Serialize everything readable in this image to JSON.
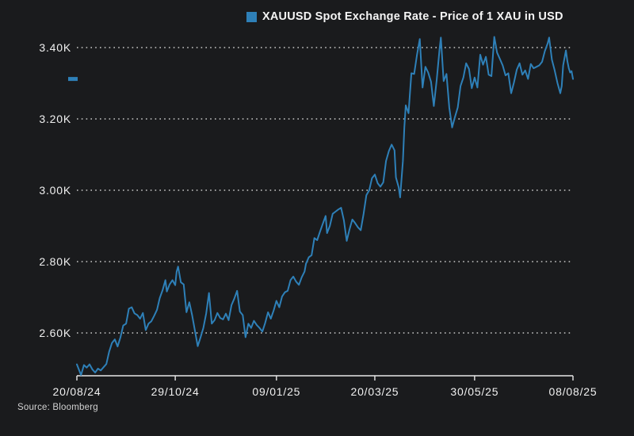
{
  "legend": {
    "label": "XAUUSD Spot Exchange Rate - Price of 1 XAU in USD"
  },
  "source": "Source: Bloomberg",
  "colors": {
    "background": "#1a1b1d",
    "line": "#2e80b8",
    "swatch": "#2e80b8",
    "text": "#f2f2f2",
    "grid": "#c9c9c9",
    "axis": "#e8e8e8"
  },
  "chart_data": {
    "type": "line",
    "title": "XAUUSD Spot Exchange Rate - Price of 1 XAU in USD",
    "legend_position": "top",
    "grid": "dotted-horizontal",
    "y_axis": {
      "tick_labels": [
        "3.40K",
        "3.20K",
        "3.00K",
        "2.80K",
        "2.60K"
      ],
      "tick_values": [
        3400,
        3200,
        3000,
        2800,
        2600
      ],
      "ylim": [
        2480,
        3445
      ],
      "unit": "USD"
    },
    "x_axis": {
      "tick_labels": [
        "20/08/24",
        "29/10/24",
        "09/01/25",
        "20/03/25",
        "30/05/25",
        "08/08/25"
      ],
      "tick_days": [
        0,
        70,
        142,
        212,
        283,
        353
      ],
      "day_span": 353
    },
    "last_price_marker": {
      "value": 3312
    },
    "series": [
      {
        "name": "XAUUSD",
        "points": [
          [
            0,
            2512
          ],
          [
            2,
            2492
          ],
          [
            3,
            2482
          ],
          [
            5,
            2510
          ],
          [
            7,
            2503
          ],
          [
            9,
            2512
          ],
          [
            11,
            2498
          ],
          [
            13,
            2489
          ],
          [
            15,
            2500
          ],
          [
            17,
            2495
          ],
          [
            19,
            2504
          ],
          [
            21,
            2513
          ],
          [
            23,
            2548
          ],
          [
            25,
            2572
          ],
          [
            27,
            2582
          ],
          [
            29,
            2562
          ],
          [
            31,
            2588
          ],
          [
            33,
            2621
          ],
          [
            35,
            2626
          ],
          [
            37,
            2668
          ],
          [
            39,
            2672
          ],
          [
            41,
            2655
          ],
          [
            43,
            2650
          ],
          [
            45,
            2640
          ],
          [
            47,
            2656
          ],
          [
            49,
            2608
          ],
          [
            51,
            2626
          ],
          [
            53,
            2633
          ],
          [
            55,
            2648
          ],
          [
            57,
            2665
          ],
          [
            59,
            2698
          ],
          [
            61,
            2720
          ],
          [
            63,
            2748
          ],
          [
            64,
            2716
          ],
          [
            66,
            2736
          ],
          [
            68,
            2748
          ],
          [
            70,
            2734
          ],
          [
            71,
            2772
          ],
          [
            72,
            2786
          ],
          [
            74,
            2742
          ],
          [
            76,
            2736
          ],
          [
            78,
            2658
          ],
          [
            80,
            2686
          ],
          [
            82,
            2650
          ],
          [
            84,
            2606
          ],
          [
            86,
            2563
          ],
          [
            88,
            2588
          ],
          [
            90,
            2614
          ],
          [
            92,
            2655
          ],
          [
            94,
            2712
          ],
          [
            96,
            2626
          ],
          [
            98,
            2636
          ],
          [
            100,
            2656
          ],
          [
            102,
            2642
          ],
          [
            104,
            2638
          ],
          [
            106,
            2654
          ],
          [
            108,
            2636
          ],
          [
            110,
            2678
          ],
          [
            112,
            2696
          ],
          [
            114,
            2718
          ],
          [
            116,
            2660
          ],
          [
            118,
            2650
          ],
          [
            120,
            2588
          ],
          [
            122,
            2626
          ],
          [
            124,
            2614
          ],
          [
            126,
            2634
          ],
          [
            128,
            2622
          ],
          [
            130,
            2614
          ],
          [
            132,
            2604
          ],
          [
            134,
            2628
          ],
          [
            136,
            2658
          ],
          [
            138,
            2640
          ],
          [
            140,
            2663
          ],
          [
            142,
            2690
          ],
          [
            144,
            2672
          ],
          [
            146,
            2702
          ],
          [
            148,
            2714
          ],
          [
            150,
            2718
          ],
          [
            152,
            2748
          ],
          [
            154,
            2758
          ],
          [
            156,
            2744
          ],
          [
            158,
            2735
          ],
          [
            160,
            2756
          ],
          [
            162,
            2772
          ],
          [
            163,
            2794
          ],
          [
            165,
            2812
          ],
          [
            167,
            2818
          ],
          [
            169,
            2866
          ],
          [
            171,
            2860
          ],
          [
            173,
            2884
          ],
          [
            175,
            2906
          ],
          [
            177,
            2928
          ],
          [
            178,
            2880
          ],
          [
            180,
            2900
          ],
          [
            182,
            2934
          ],
          [
            184,
            2940
          ],
          [
            186,
            2946
          ],
          [
            188,
            2951
          ],
          [
            190,
            2916
          ],
          [
            192,
            2858
          ],
          [
            194,
            2890
          ],
          [
            196,
            2918
          ],
          [
            198,
            2908
          ],
          [
            200,
            2896
          ],
          [
            202,
            2888
          ],
          [
            204,
            2934
          ],
          [
            206,
            2986
          ],
          [
            208,
            3000
          ],
          [
            210,
            3034
          ],
          [
            212,
            3044
          ],
          [
            214,
            3020
          ],
          [
            216,
            3010
          ],
          [
            218,
            3022
          ],
          [
            220,
            3082
          ],
          [
            222,
            3110
          ],
          [
            224,
            3128
          ],
          [
            226,
            3112
          ],
          [
            227,
            3036
          ],
          [
            229,
            3008
          ],
          [
            230,
            2980
          ],
          [
            232,
            3082
          ],
          [
            233,
            3176
          ],
          [
            234,
            3238
          ],
          [
            236,
            3216
          ],
          [
            238,
            3328
          ],
          [
            240,
            3326
          ],
          [
            242,
            3380
          ],
          [
            244,
            3424
          ],
          [
            246,
            3288
          ],
          [
            248,
            3346
          ],
          [
            250,
            3330
          ],
          [
            252,
            3304
          ],
          [
            254,
            3236
          ],
          [
            256,
            3308
          ],
          [
            258,
            3392
          ],
          [
            259,
            3428
          ],
          [
            261,
            3306
          ],
          [
            263,
            3326
          ],
          [
            265,
            3232
          ],
          [
            267,
            3176
          ],
          [
            269,
            3205
          ],
          [
            271,
            3232
          ],
          [
            273,
            3292
          ],
          [
            275,
            3316
          ],
          [
            277,
            3356
          ],
          [
            279,
            3340
          ],
          [
            281,
            3286
          ],
          [
            283,
            3316
          ],
          [
            285,
            3288
          ],
          [
            287,
            3380
          ],
          [
            289,
            3352
          ],
          [
            291,
            3374
          ],
          [
            293,
            3324
          ],
          [
            295,
            3320
          ],
          [
            297,
            3430
          ],
          [
            299,
            3386
          ],
          [
            301,
            3368
          ],
          [
            303,
            3350
          ],
          [
            305,
            3322
          ],
          [
            307,
            3328
          ],
          [
            309,
            3272
          ],
          [
            311,
            3302
          ],
          [
            313,
            3338
          ],
          [
            315,
            3356
          ],
          [
            317,
            3324
          ],
          [
            319,
            3336
          ],
          [
            321,
            3312
          ],
          [
            323,
            3354
          ],
          [
            325,
            3342
          ],
          [
            327,
            3346
          ],
          [
            329,
            3350
          ],
          [
            331,
            3360
          ],
          [
            333,
            3390
          ],
          [
            335,
            3412
          ],
          [
            336,
            3428
          ],
          [
            338,
            3366
          ],
          [
            340,
            3336
          ],
          [
            342,
            3300
          ],
          [
            344,
            3272
          ],
          [
            345,
            3292
          ],
          [
            346,
            3350
          ],
          [
            348,
            3392
          ],
          [
            349,
            3362
          ],
          [
            350,
            3342
          ],
          [
            351,
            3330
          ],
          [
            352,
            3334
          ],
          [
            353,
            3312
          ]
        ]
      }
    ]
  }
}
